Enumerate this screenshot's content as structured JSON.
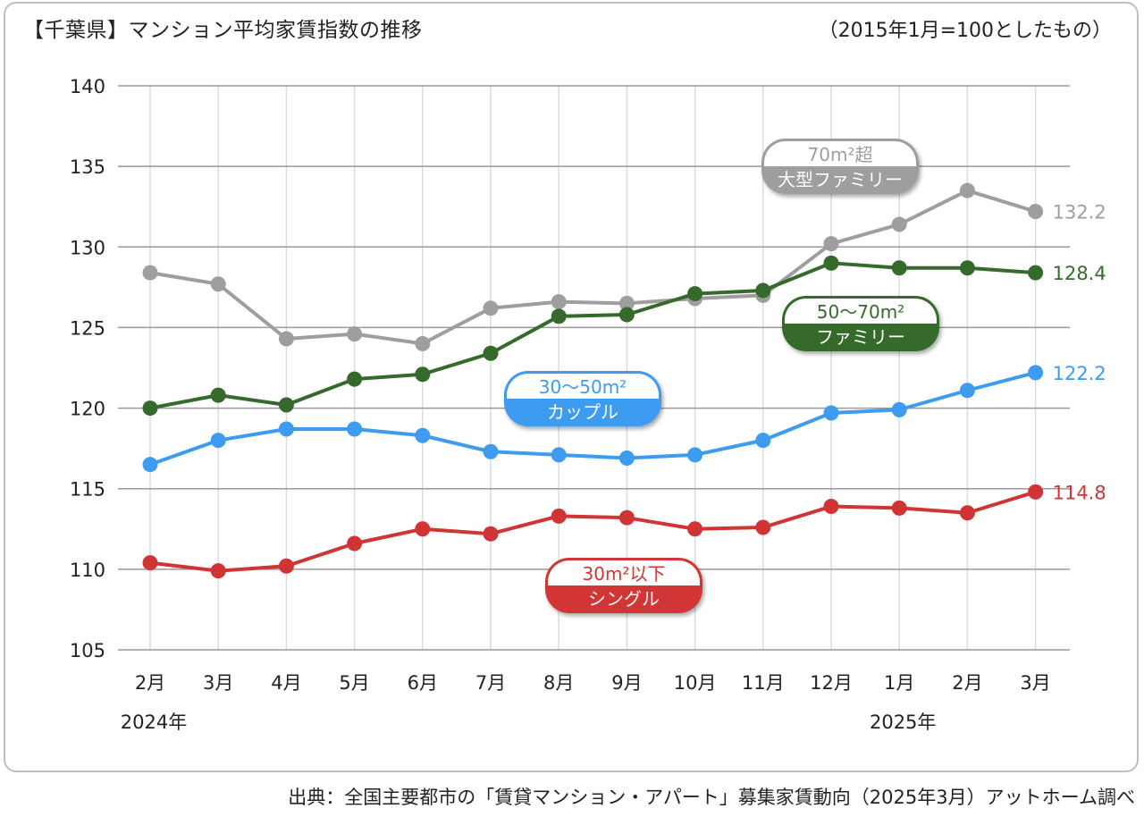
{
  "title": "【千葉県】マンション平均家賃指数の推移",
  "subtitle": "（2015年1月=100としたもの）",
  "source": "出典：全国主要都市の「賃貸マンション・アパート」募集家賃動向（2025年3月）アットホーム調べ",
  "chart_data": {
    "type": "line",
    "categories": [
      "2月",
      "3月",
      "4月",
      "5月",
      "6月",
      "7月",
      "8月",
      "9月",
      "10月",
      "11月",
      "12月",
      "1月",
      "2月",
      "3月"
    ],
    "year_labels": [
      {
        "label": "2024年",
        "at_index": 0
      },
      {
        "label": "2025年",
        "at_index": 11
      }
    ],
    "ylim": [
      105,
      140
    ],
    "yticks": [
      105,
      110,
      115,
      120,
      125,
      130,
      135,
      140
    ],
    "grid": true,
    "series": [
      {
        "name_line1": "70m²超",
        "name_line2": "大型ファミリー",
        "color": "#9e9e9e",
        "values": [
          128.4,
          127.7,
          124.3,
          124.6,
          124.0,
          126.2,
          126.6,
          126.5,
          126.8,
          127.0,
          130.2,
          131.4,
          133.5,
          132.2
        ],
        "end_label": "132.2"
      },
      {
        "name_line1": "50～70m²",
        "name_line2": "ファミリー",
        "color": "#356a2c",
        "values": [
          120.0,
          120.8,
          120.2,
          121.8,
          122.1,
          123.4,
          125.7,
          125.8,
          127.1,
          127.3,
          129.0,
          128.7,
          128.7,
          128.4
        ],
        "end_label": "128.4"
      },
      {
        "name_line1": "30～50m²",
        "name_line2": "カップル",
        "color": "#3d9bf0",
        "values": [
          116.5,
          118.0,
          118.7,
          118.7,
          118.3,
          117.3,
          117.1,
          116.9,
          117.1,
          118.0,
          119.7,
          119.9,
          121.1,
          122.2
        ],
        "end_label": "122.2"
      },
      {
        "name_line1": "30m²以下",
        "name_line2": "シングル",
        "color": "#d13434",
        "values": [
          110.4,
          109.9,
          110.2,
          111.6,
          112.5,
          112.2,
          113.3,
          113.2,
          112.5,
          112.6,
          113.9,
          113.8,
          113.5,
          114.8
        ],
        "end_label": "114.8"
      }
    ]
  }
}
